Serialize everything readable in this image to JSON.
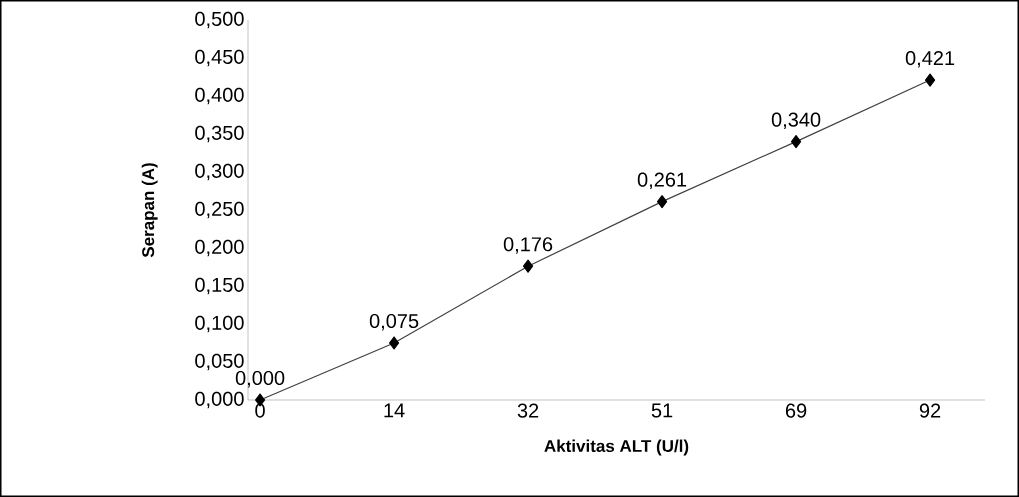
{
  "chart_data": {
    "type": "line",
    "xlabel": "Aktivitas  ALT (U/l)",
    "ylabel": "Serapan (A)",
    "categories": [
      "0",
      "14",
      "32",
      "51",
      "69",
      "92"
    ],
    "values": [
      0.0,
      0.075,
      0.176,
      0.261,
      0.34,
      0.421
    ],
    "value_labels": [
      "0,000",
      "0,075",
      "0,176",
      "0,261",
      "0,340",
      "0,421"
    ],
    "color": "#404040",
    "marker": "diamond",
    "line_style": "solid",
    "grid": false,
    "ylim": [
      0,
      0.5
    ],
    "yticks": [
      {
        "value": 0,
        "label": "0,000"
      },
      {
        "value": 0.05,
        "label": "0,050"
      },
      {
        "value": 0.1,
        "label": "0,100"
      },
      {
        "value": 0.15,
        "label": "0,150"
      },
      {
        "value": 0.2,
        "label": "0,200"
      },
      {
        "value": 0.25,
        "label": "0,250"
      },
      {
        "value": 0.3,
        "label": "0,300"
      },
      {
        "value": 0.35,
        "label": "0,350"
      },
      {
        "value": 0.4,
        "label": "0,400"
      },
      {
        "value": 0.45,
        "label": "0,450"
      },
      {
        "value": 0.5,
        "label": "0,500"
      }
    ]
  }
}
